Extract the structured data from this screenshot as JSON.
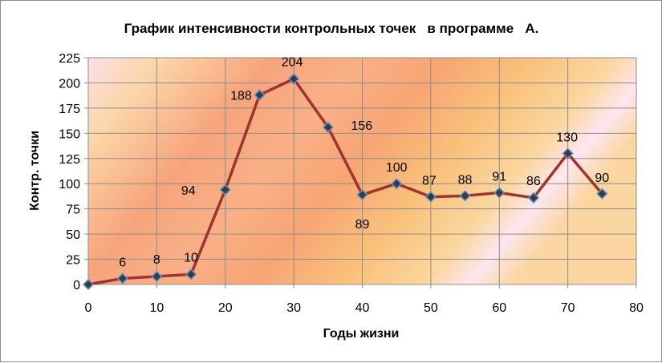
{
  "chart_data": {
    "type": "line",
    "title": "График интенсивности контрольных точек   в программе   А.",
    "xlabel": "Годы жизни",
    "ylabel": "Контр. точки",
    "xlim": [
      0,
      80
    ],
    "ylim": [
      0,
      225
    ],
    "x_ticks": [
      0,
      10,
      20,
      30,
      40,
      50,
      60,
      70,
      80
    ],
    "y_ticks": [
      0,
      25,
      50,
      75,
      100,
      125,
      150,
      175,
      200,
      225
    ],
    "grid": true,
    "legend": "none",
    "series": [
      {
        "x": [
          0,
          5,
          10,
          15,
          20,
          25,
          30,
          35,
          40,
          45,
          50,
          55,
          60,
          65,
          70,
          75
        ],
        "y": [
          0,
          6,
          8,
          10,
          94,
          188,
          204,
          156,
          89,
          100,
          87,
          88,
          91,
          86,
          130,
          90
        ],
        "labels": [
          "",
          "6",
          "8",
          "10",
          "94",
          "188",
          "204",
          "156",
          "89",
          "100",
          "87",
          "88",
          "91",
          "86",
          "130",
          "90"
        ]
      }
    ],
    "colors": {
      "line": "#a0332e",
      "marker_fill": "#3a3a3a",
      "marker_stroke": "#5b8fd0",
      "grid": "#8c8c8c",
      "plot_bg_light": "#fde3cf",
      "plot_bg_dark": "#f7a878"
    }
  }
}
